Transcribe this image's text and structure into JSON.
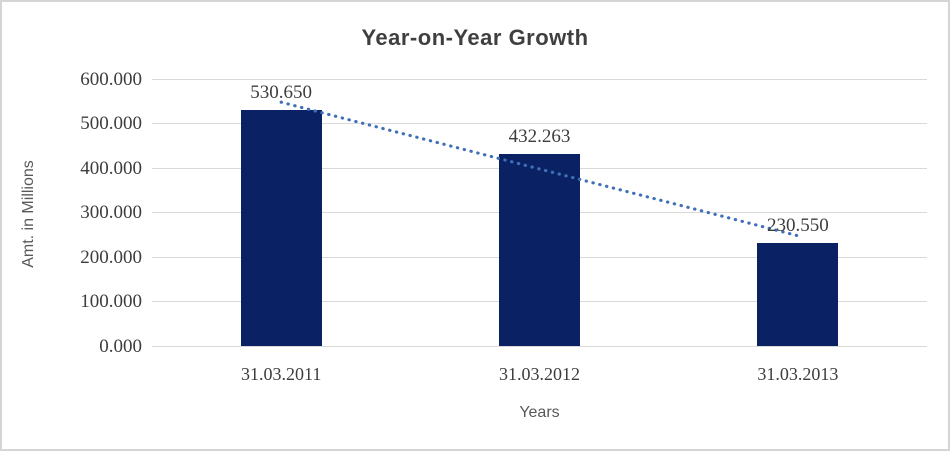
{
  "chart_data": {
    "type": "bar",
    "title": "Year-on-Year Growth",
    "xlabel": "Years",
    "ylabel": "Amt. in Millions",
    "categories": [
      "31.03.2011",
      "31.03.2012",
      "31.03.2013"
    ],
    "values": [
      530.65,
      432.263,
      230.55
    ],
    "value_labels": [
      "530.650",
      "432.263",
      "230.550"
    ],
    "series_name": "Amt. in Millions",
    "ylim": [
      0,
      600
    ],
    "y_ticks": [
      {
        "value": 0,
        "label": "0.000"
      },
      {
        "value": 100,
        "label": "100.000"
      },
      {
        "value": 200,
        "label": "200.000"
      },
      {
        "value": 300,
        "label": "300.000"
      },
      {
        "value": 400,
        "label": "400.000"
      },
      {
        "value": 500,
        "label": "500.000"
      },
      {
        "value": 600,
        "label": "600.000"
      }
    ],
    "grid": true,
    "legend": false,
    "trendline": "linear-dotted",
    "colors": {
      "bar": "#0a2263",
      "trendline": "#3f6fb7",
      "gridline": "#d9d9d9",
      "title_text": "#3f3f3f",
      "tick_text": "#3d3d3d",
      "axis_title_text": "#595959"
    }
  }
}
